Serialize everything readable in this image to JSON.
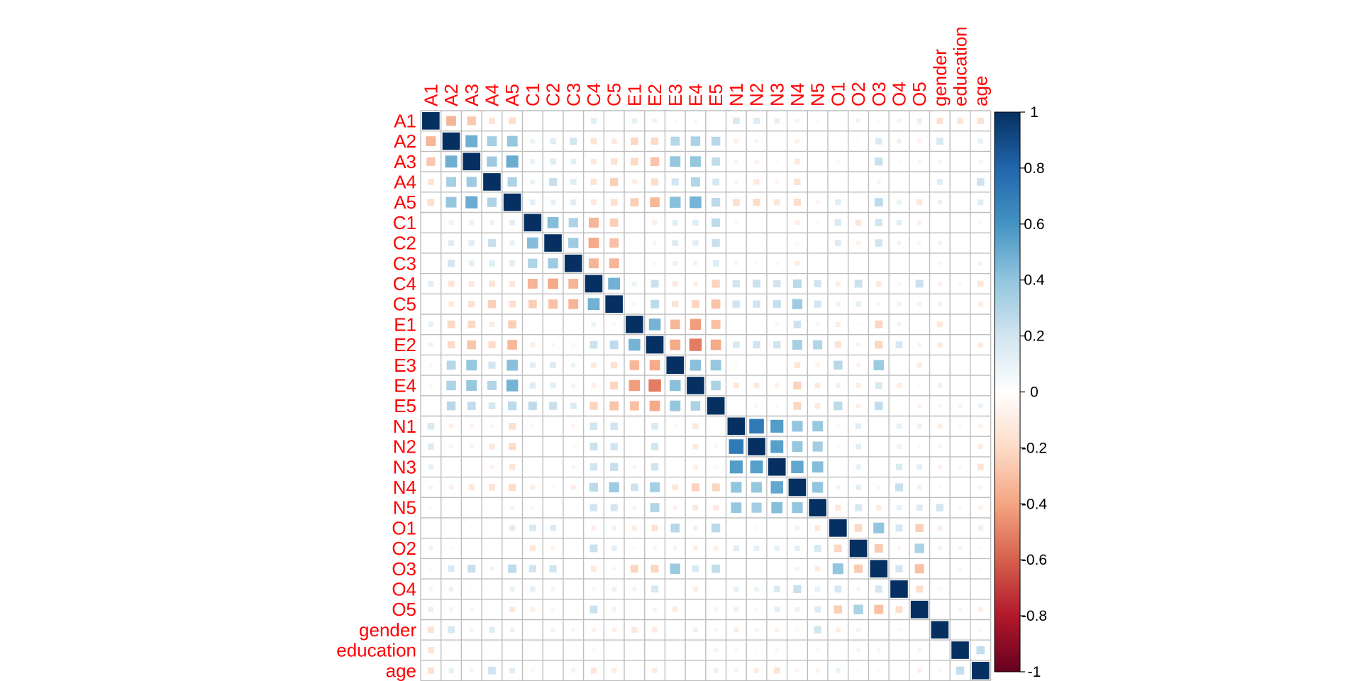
{
  "chart_data": {
    "type": "heatmap",
    "style": "corrplot-square",
    "variables": [
      "A1",
      "A2",
      "A3",
      "A4",
      "A5",
      "C1",
      "C2",
      "C3",
      "C4",
      "C5",
      "E1",
      "E2",
      "E3",
      "E4",
      "E5",
      "N1",
      "N2",
      "N3",
      "N4",
      "N5",
      "O1",
      "O2",
      "O3",
      "O4",
      "O5",
      "gender",
      "education",
      "age"
    ],
    "matrix": [
      [
        1,
        -0.34,
        -0.27,
        -0.15,
        -0.18,
        0.03,
        0.02,
        -0.02,
        0.13,
        0.03,
        0.11,
        0.09,
        -0.05,
        -0.06,
        0.02,
        0.17,
        0.15,
        0.11,
        0.07,
        0.05,
        0.02,
        0.08,
        -0.05,
        -0.08,
        0.11,
        -0.16,
        -0.15,
        -0.16
      ],
      [
        -0.34,
        1,
        0.49,
        0.34,
        0.39,
        0.09,
        0.14,
        0.19,
        -0.15,
        -0.12,
        -0.21,
        -0.2,
        0.29,
        0.32,
        0.28,
        -0.09,
        -0.07,
        -0.01,
        -0.09,
        -0.03,
        0.02,
        0.04,
        0.16,
        0.09,
        -0.08,
        0.18,
        0.02,
        0.11
      ],
      [
        -0.27,
        0.49,
        1,
        0.36,
        0.5,
        0.1,
        0.14,
        0.12,
        -0.13,
        -0.16,
        -0.21,
        -0.28,
        0.39,
        0.39,
        0.25,
        -0.07,
        -0.08,
        -0.04,
        -0.13,
        -0.01,
        0.05,
        0.02,
        0.23,
        0.04,
        -0.06,
        0.07,
        -0.01,
        0.07
      ],
      [
        -0.15,
        0.34,
        0.36,
        1,
        0.31,
        0.09,
        0.23,
        0.14,
        -0.15,
        -0.24,
        -0.11,
        -0.19,
        0.19,
        0.3,
        0.18,
        -0.06,
        -0.13,
        -0.07,
        -0.16,
        0,
        -0.01,
        0.01,
        0.07,
        -0.03,
        0.02,
        0.14,
        -0.01,
        0.21
      ],
      [
        -0.18,
        0.39,
        0.5,
        0.31,
        1,
        0.12,
        0.11,
        0.13,
        -0.13,
        -0.17,
        -0.25,
        -0.33,
        0.42,
        0.47,
        0.27,
        -0.18,
        -0.19,
        -0.14,
        -0.19,
        -0.07,
        0.13,
        0.01,
        0.26,
        0.1,
        -0.13,
        0.09,
        0.03,
        0.13
      ],
      [
        0.03,
        0.09,
        0.1,
        0.09,
        0.12,
        1,
        0.43,
        0.31,
        -0.34,
        -0.25,
        -0.02,
        -0.1,
        0.13,
        0.14,
        0.26,
        -0.05,
        -0.01,
        -0.01,
        -0.09,
        -0.05,
        0.17,
        -0.14,
        0.2,
        0.12,
        -0.09,
        0,
        0.03,
        0.06
      ],
      [
        0.02,
        0.14,
        0.14,
        0.23,
        0.11,
        0.43,
        1,
        0.36,
        -0.38,
        -0.3,
        0.02,
        -0.06,
        0.15,
        0.13,
        0.23,
        0.02,
        0.02,
        0,
        -0.05,
        0,
        0.15,
        -0.08,
        0.2,
        0.08,
        -0.06,
        0.08,
        0,
        0.02
      ],
      [
        -0.02,
        0.19,
        0.12,
        0.14,
        0.13,
        0.31,
        0.36,
        1,
        -0.34,
        -0.34,
        0,
        -0.06,
        0.09,
        0.08,
        0.15,
        -0.07,
        -0.05,
        -0.06,
        -0.1,
        -0.01,
        0.04,
        -0.01,
        0.03,
        0,
        -0.01,
        0.06,
        -0.02,
        0.08
      ],
      [
        0.13,
        -0.15,
        -0.13,
        -0.15,
        -0.13,
        -0.34,
        -0.38,
        -0.34,
        1,
        0.48,
        0.09,
        0.22,
        -0.12,
        -0.09,
        -0.23,
        0.2,
        0.22,
        0.2,
        0.27,
        0.2,
        -0.1,
        0.22,
        -0.12,
        0.05,
        0.22,
        -0.08,
        -0.05,
        -0.14
      ],
      [
        0.03,
        -0.12,
        -0.16,
        -0.24,
        -0.17,
        -0.25,
        -0.3,
        -0.34,
        0.48,
        1,
        0.06,
        0.26,
        -0.16,
        -0.22,
        -0.29,
        0.2,
        0.2,
        0.23,
        0.36,
        0.19,
        -0.09,
        0.12,
        -0.06,
        0.09,
        0.08,
        -0.09,
        -0.01,
        -0.1
      ],
      [
        0.11,
        -0.21,
        -0.21,
        -0.11,
        -0.25,
        -0.02,
        0.02,
        0,
        0.09,
        0.06,
        1,
        0.47,
        -0.33,
        -0.42,
        -0.3,
        0.02,
        0.02,
        0.06,
        0.21,
        0.07,
        -0.1,
        0.04,
        -0.22,
        0.07,
        0.03,
        -0.13,
        0.01,
        -0.03
      ],
      [
        0.09,
        -0.2,
        -0.28,
        -0.19,
        -0.33,
        -0.1,
        -0.06,
        -0.06,
        0.22,
        0.26,
        0.47,
        1,
        -0.38,
        -0.52,
        -0.38,
        0.17,
        0.2,
        0.2,
        0.34,
        0.3,
        -0.16,
        0.07,
        -0.22,
        0.18,
        0.07,
        -0.11,
        0,
        -0.11
      ],
      [
        -0.05,
        0.29,
        0.39,
        0.19,
        0.42,
        0.13,
        0.15,
        0.09,
        -0.12,
        -0.16,
        -0.33,
        -0.38,
        1,
        0.42,
        0.39,
        -0.05,
        -0.03,
        -0.02,
        -0.14,
        -0.08,
        0.28,
        -0.07,
        0.37,
        0.02,
        -0.11,
        0.01,
        0,
        0.02
      ],
      [
        -0.06,
        0.32,
        0.39,
        0.3,
        0.47,
        0.14,
        0.13,
        0.08,
        -0.09,
        -0.22,
        -0.42,
        -0.52,
        0.42,
        1,
        0.32,
        -0.13,
        -0.12,
        -0.09,
        -0.23,
        -0.12,
        0.09,
        -0.1,
        0.17,
        -0.1,
        -0.04,
        0.09,
        0,
        0.02
      ],
      [
        0.02,
        0.28,
        0.25,
        0.18,
        0.27,
        0.26,
        0.23,
        0.15,
        -0.23,
        -0.29,
        -0.3,
        -0.38,
        0.39,
        0.32,
        1,
        -0.01,
        -0.06,
        -0.05,
        -0.22,
        -0.12,
        0.27,
        -0.09,
        0.25,
        0.02,
        -0.08,
        -0.06,
        0.07,
        0.1
      ],
      [
        0.17,
        -0.09,
        -0.07,
        -0.06,
        -0.18,
        -0.05,
        0.02,
        -0.07,
        0.2,
        0.2,
        0.02,
        0.17,
        -0.05,
        -0.13,
        -0.01,
        1,
        0.71,
        0.56,
        0.4,
        0.38,
        -0.05,
        0.13,
        -0.02,
        0.11,
        0.1,
        -0.1,
        -0.05,
        -0.08
      ],
      [
        0.15,
        -0.07,
        -0.08,
        -0.13,
        -0.19,
        -0.01,
        0.02,
        -0.05,
        0.22,
        0.2,
        0.02,
        0.2,
        -0.03,
        -0.12,
        -0.06,
        0.71,
        1,
        0.55,
        0.39,
        0.35,
        -0.05,
        0.12,
        -0.02,
        0.09,
        0.05,
        -0.07,
        -0.04,
        -0.1
      ],
      [
        0.11,
        -0.01,
        -0.04,
        -0.07,
        -0.14,
        -0.01,
        0,
        -0.06,
        0.2,
        0.23,
        0.06,
        0.2,
        -0.02,
        -0.09,
        -0.05,
        0.56,
        0.55,
        1,
        0.52,
        0.43,
        -0.02,
        0.11,
        -0.01,
        0.16,
        0.12,
        -0.08,
        -0.06,
        -0.15
      ],
      [
        0.07,
        -0.09,
        -0.13,
        -0.16,
        -0.19,
        -0.09,
        -0.05,
        -0.1,
        0.27,
        0.36,
        0.21,
        0.34,
        -0.14,
        -0.23,
        -0.22,
        0.4,
        0.39,
        0.52,
        1,
        0.4,
        -0.08,
        0.12,
        -0.07,
        0.23,
        0.09,
        -0.05,
        -0.02,
        -0.07
      ],
      [
        0.05,
        -0.03,
        -0.01,
        0,
        -0.07,
        -0.05,
        0,
        -0.01,
        0.2,
        0.19,
        0.07,
        0.3,
        -0.08,
        -0.12,
        -0.12,
        0.38,
        0.35,
        0.43,
        0.4,
        1,
        -0.13,
        0.18,
        -0.11,
        0.11,
        0.15,
        0.2,
        -0.05,
        -0.08
      ],
      [
        0.02,
        0.02,
        0.05,
        -0.01,
        0.13,
        0.17,
        0.15,
        0.04,
        -0.1,
        -0.09,
        -0.1,
        -0.16,
        0.28,
        0.09,
        0.27,
        -0.05,
        -0.05,
        -0.02,
        -0.08,
        -0.13,
        1,
        -0.21,
        0.4,
        0.18,
        -0.24,
        -0.1,
        0.03,
        0.1
      ],
      [
        0.08,
        0.04,
        0.02,
        0.01,
        0.01,
        -0.14,
        -0.08,
        -0.01,
        0.22,
        0.12,
        0.04,
        0.07,
        -0.07,
        -0.1,
        -0.09,
        0.13,
        0.12,
        0.11,
        0.12,
        0.18,
        -0.21,
        1,
        -0.26,
        -0.07,
        0.32,
        0.08,
        -0.07,
        -0.04
      ],
      [
        -0.05,
        0.16,
        0.23,
        0.07,
        0.26,
        0.2,
        0.2,
        0.03,
        -0.12,
        -0.06,
        -0.22,
        -0.22,
        0.37,
        0.17,
        0.25,
        -0.02,
        -0.02,
        -0.01,
        -0.07,
        -0.11,
        0.4,
        -0.26,
        1,
        0.19,
        -0.3,
        -0.03,
        0.06,
        0.04
      ],
      [
        -0.08,
        0.09,
        0.04,
        -0.03,
        0.1,
        0.12,
        0.08,
        0,
        0.05,
        0.09,
        0.07,
        0.18,
        0.02,
        -0.1,
        0.02,
        0.11,
        0.09,
        0.16,
        0.23,
        0.11,
        0.18,
        -0.07,
        0.19,
        1,
        -0.18,
        0.05,
        0.02,
        0
      ],
      [
        0.11,
        -0.08,
        -0.06,
        0.02,
        -0.13,
        -0.09,
        -0.06,
        -0.01,
        0.22,
        0.08,
        0.03,
        0.07,
        -0.11,
        -0.04,
        -0.08,
        0.1,
        0.05,
        0.12,
        0.09,
        0.15,
        -0.24,
        0.32,
        -0.3,
        -0.18,
        1,
        -0.03,
        -0.07,
        -0.09
      ],
      [
        -0.16,
        0.18,
        0.07,
        0.14,
        0.09,
        0,
        0.08,
        0.06,
        -0.08,
        -0.09,
        -0.13,
        -0.11,
        0.01,
        0.09,
        -0.06,
        -0.1,
        -0.07,
        -0.08,
        -0.05,
        0.2,
        -0.1,
        0.08,
        -0.03,
        0.05,
        -0.03,
        1,
        0.01,
        0.05
      ],
      [
        -0.15,
        0.02,
        -0.01,
        -0.01,
        0.03,
        0.03,
        0,
        -0.02,
        -0.05,
        -0.01,
        0.01,
        0,
        0,
        0,
        0.07,
        -0.05,
        -0.04,
        -0.06,
        -0.02,
        -0.05,
        0.03,
        -0.07,
        0.06,
        0.02,
        -0.07,
        0.01,
        1,
        0.24
      ],
      [
        -0.16,
        0.11,
        0.07,
        0.21,
        0.13,
        0.06,
        0.02,
        0.08,
        -0.14,
        -0.1,
        -0.03,
        -0.11,
        0.02,
        0.02,
        0.1,
        -0.08,
        -0.1,
        -0.15,
        -0.07,
        -0.08,
        0.1,
        -0.04,
        0.04,
        0,
        -0.09,
        0.05,
        0.24,
        1
      ]
    ],
    "colorbar": {
      "range": [
        -1,
        1
      ],
      "tick_values": [
        1,
        0.8,
        0.6,
        0.4,
        0.2,
        0,
        -0.2,
        -0.4,
        -0.6,
        -0.8,
        -1
      ],
      "tick_labels": [
        "1",
        "0.8",
        "0.6",
        "0.4",
        "0.2",
        "0",
        "-0.2",
        "-0.4",
        "-0.6",
        "-0.8",
        "-1"
      ],
      "palette": [
        "#67001F",
        "#B2182B",
        "#D6604D",
        "#F4A582",
        "#FDDBC7",
        "#FFFFFF",
        "#D1E5F0",
        "#92C5DE",
        "#4393C3",
        "#2166AC",
        "#053061"
      ]
    },
    "label_color": "#FF0000",
    "grid_color": "#BEBEBE",
    "title": "",
    "xlabel": "",
    "ylabel": ""
  }
}
